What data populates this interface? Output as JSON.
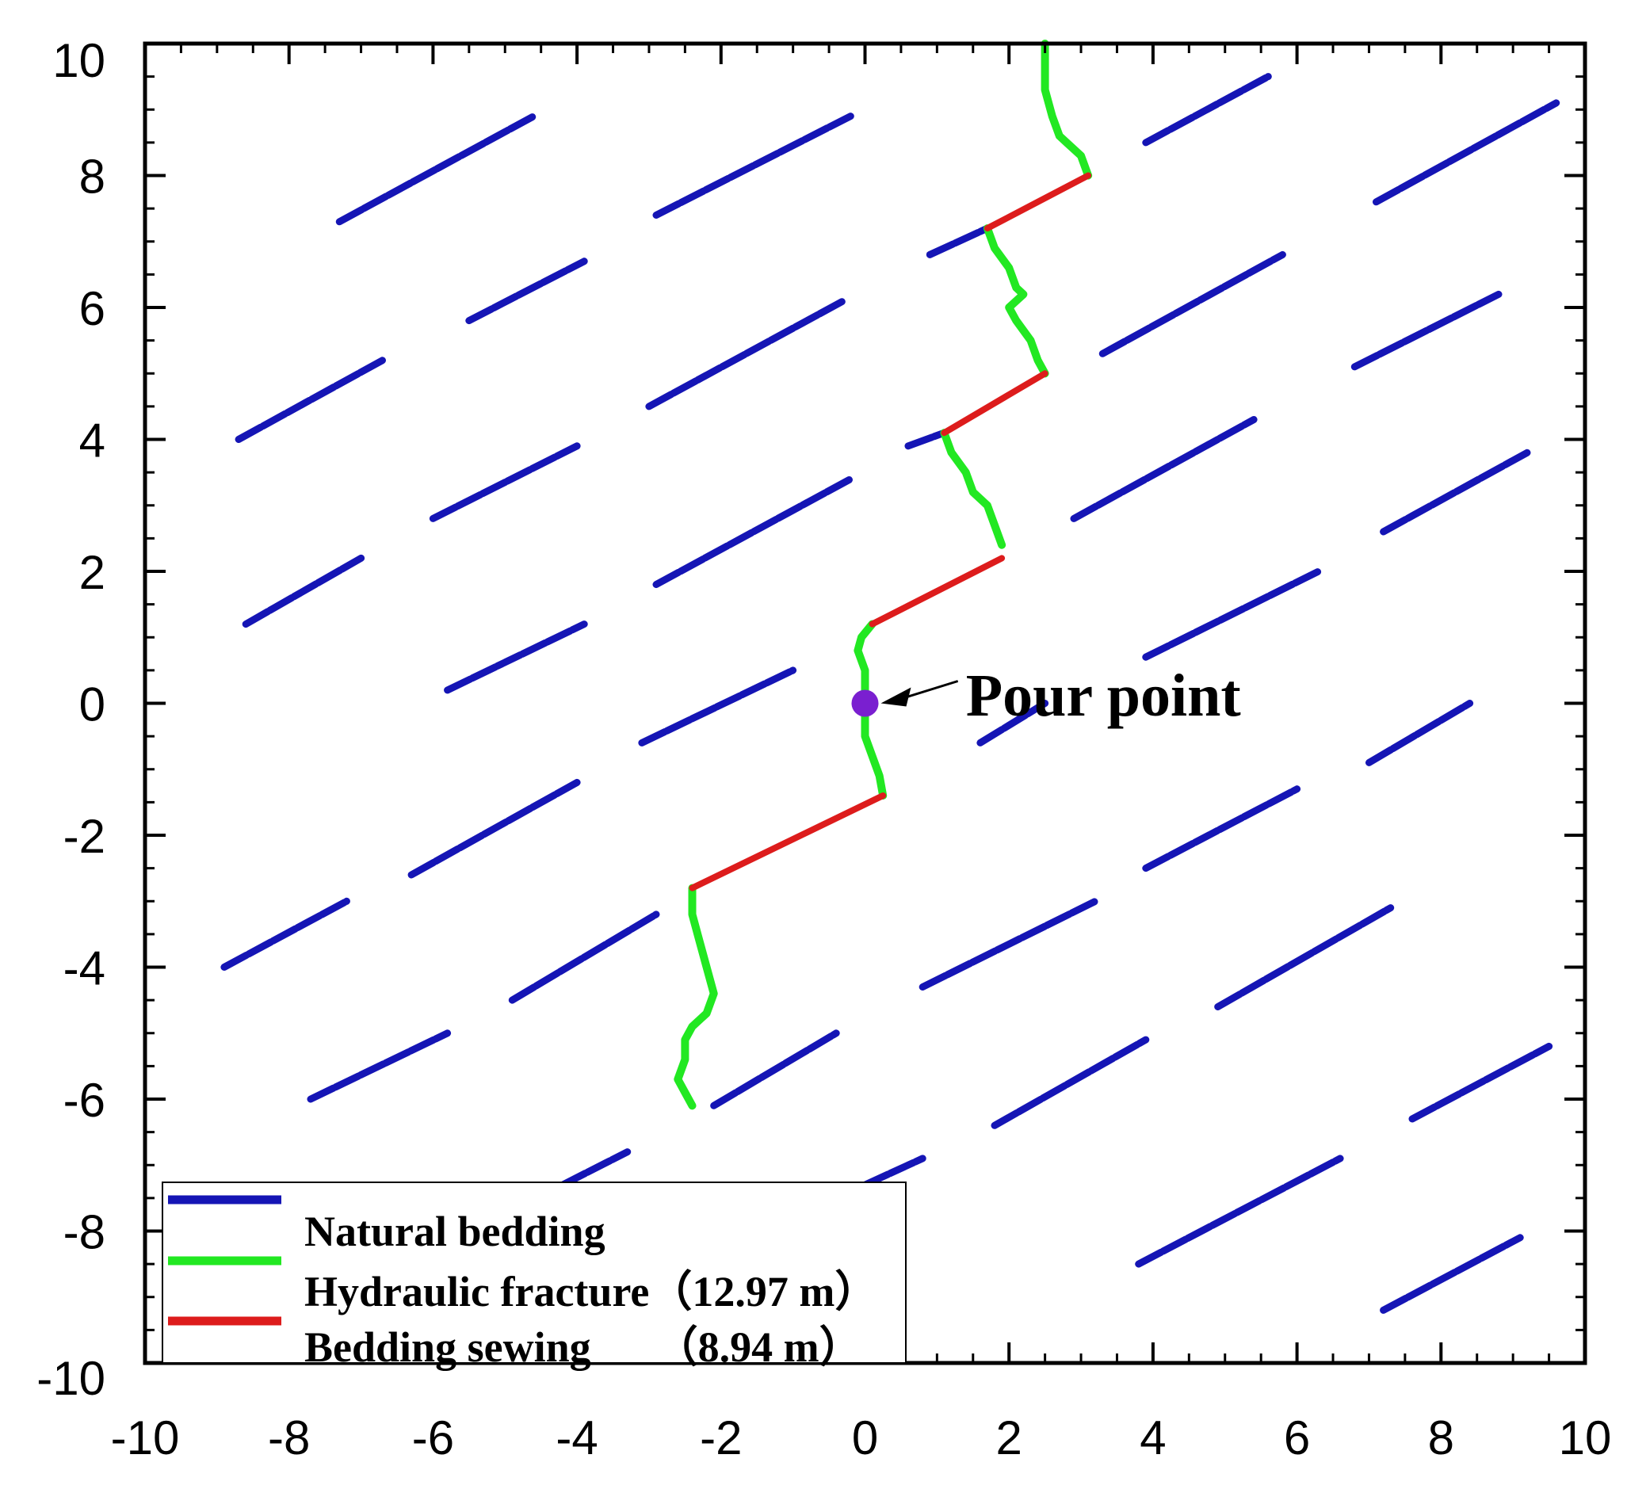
{
  "chart_data": {
    "type": "line",
    "title": "",
    "xlabel": "",
    "ylabel": "",
    "xlim": [
      -10,
      10
    ],
    "ylim": [
      -10,
      10
    ],
    "x_ticks": [
      "-10",
      "-8",
      "-6",
      "-4",
      "-2",
      "0",
      "2",
      "4",
      "6",
      "8",
      "10"
    ],
    "y_ticks": [
      "10",
      "8",
      "6",
      "4",
      "2",
      "0",
      "-2",
      "-4",
      "-6",
      "-8",
      "-10"
    ],
    "grid": false,
    "legend_position": "bottom-left",
    "colors": {
      "natural_bedding": "#1515b5",
      "hydraulic_fracture": "#22e822",
      "bedding_sewing": "#dd1c1c",
      "pour_point": "#7a1fd0",
      "axes": "#000000"
    },
    "series": [
      {
        "name": "Natural bedding",
        "segments": [
          [
            [
              -7.3,
              7.3
            ],
            [
              -4.6,
              8.9
            ]
          ],
          [
            [
              -2.9,
              7.4
            ],
            [
              -0.2,
              8.9
            ]
          ],
          [
            [
              0.9,
              6.8
            ],
            [
              1.7,
              7.2
            ]
          ],
          [
            [
              3.9,
              8.5
            ],
            [
              5.6,
              9.5
            ]
          ],
          [
            [
              7.1,
              7.6
            ],
            [
              9.6,
              9.1
            ]
          ],
          [
            [
              -5.5,
              5.8
            ],
            [
              -3.9,
              6.7
            ]
          ],
          [
            [
              -8.7,
              4.0
            ],
            [
              -6.7,
              5.2
            ]
          ],
          [
            [
              -3.0,
              4.5
            ],
            [
              -0.3,
              6.1
            ]
          ],
          [
            [
              0.6,
              3.9
            ],
            [
              1.1,
              4.1
            ]
          ],
          [
            [
              3.3,
              5.3
            ],
            [
              5.8,
              6.8
            ]
          ],
          [
            [
              6.8,
              5.1
            ],
            [
              8.8,
              6.2
            ]
          ],
          [
            [
              -6.0,
              2.8
            ],
            [
              -4.0,
              3.9
            ]
          ],
          [
            [
              -2.9,
              1.8
            ],
            [
              -0.2,
              3.4
            ]
          ],
          [
            [
              2.9,
              2.8
            ],
            [
              5.4,
              4.3
            ]
          ],
          [
            [
              7.2,
              2.6
            ],
            [
              9.2,
              3.8
            ]
          ],
          [
            [
              -8.6,
              1.2
            ],
            [
              -7.0,
              2.2
            ]
          ],
          [
            [
              -5.8,
              0.2
            ],
            [
              -3.9,
              1.2
            ]
          ],
          [
            [
              -3.1,
              -0.6
            ],
            [
              -1.0,
              0.5
            ]
          ],
          [
            [
              1.6,
              -0.6
            ],
            [
              2.5,
              0.0
            ]
          ],
          [
            [
              3.9,
              0.7
            ],
            [
              6.3,
              2.0
            ]
          ],
          [
            [
              7.0,
              -0.9
            ],
            [
              8.4,
              0.0
            ]
          ],
          [
            [
              -6.3,
              -2.6
            ],
            [
              -4.0,
              -1.2
            ]
          ],
          [
            [
              -8.9,
              -4.0
            ],
            [
              -7.2,
              -3.0
            ]
          ],
          [
            [
              -4.9,
              -4.5
            ],
            [
              -2.9,
              -3.2
            ]
          ],
          [
            [
              0.8,
              -4.3
            ],
            [
              3.2,
              -3.0
            ]
          ],
          [
            [
              3.9,
              -2.5
            ],
            [
              6.0,
              -1.3
            ]
          ],
          [
            [
              4.9,
              -4.6
            ],
            [
              7.3,
              -3.1
            ]
          ],
          [
            [
              -7.7,
              -6.0
            ],
            [
              -5.8,
              -5.0
            ]
          ],
          [
            [
              -2.1,
              -6.1
            ],
            [
              -0.4,
              -5.0
            ]
          ],
          [
            [
              1.8,
              -6.4
            ],
            [
              3.9,
              -5.1
            ]
          ],
          [
            [
              7.6,
              -6.3
            ],
            [
              9.5,
              -5.2
            ]
          ],
          [
            [
              -4.2,
              -7.3
            ],
            [
              -3.3,
              -6.8
            ]
          ],
          [
            [
              0.0,
              -7.3
            ],
            [
              0.8,
              -6.9
            ]
          ],
          [
            [
              3.8,
              -8.5
            ],
            [
              6.6,
              -6.9
            ]
          ],
          [
            [
              7.2,
              -9.2
            ],
            [
              9.1,
              -8.1
            ]
          ]
        ]
      },
      {
        "name": "Hydraulic fracture (12.97 m)",
        "segments": [
          [
            [
              2.5,
              10.0
            ],
            [
              2.5,
              9.3
            ],
            [
              2.6,
              8.9
            ],
            [
              2.7,
              8.6
            ],
            [
              2.8,
              8.5
            ],
            [
              3.0,
              8.3
            ],
            [
              3.1,
              8.0
            ]
          ],
          [
            [
              1.7,
              7.2
            ],
            [
              1.8,
              6.9
            ],
            [
              2.0,
              6.6
            ],
            [
              2.1,
              6.3
            ],
            [
              2.2,
              6.2
            ],
            [
              2.0,
              6.0
            ],
            [
              2.1,
              5.8
            ],
            [
              2.3,
              5.5
            ],
            [
              2.4,
              5.2
            ],
            [
              2.5,
              5.0
            ]
          ],
          [
            [
              1.1,
              4.1
            ],
            [
              1.2,
              3.8
            ],
            [
              1.4,
              3.5
            ],
            [
              1.5,
              3.2
            ],
            [
              1.7,
              3.0
            ],
            [
              1.8,
              2.7
            ],
            [
              1.9,
              2.4
            ]
          ],
          [
            [
              0.1,
              1.2
            ],
            [
              -0.05,
              1.0
            ],
            [
              -0.1,
              0.8
            ],
            [
              0.0,
              0.5
            ],
            [
              0.0,
              0.0
            ],
            [
              0.0,
              -0.5
            ],
            [
              0.1,
              -0.8
            ],
            [
              0.2,
              -1.1
            ],
            [
              0.25,
              -1.4
            ]
          ],
          [
            [
              -2.4,
              -2.8
            ],
            [
              -2.4,
              -3.2
            ],
            [
              -2.3,
              -3.6
            ],
            [
              -2.2,
              -4.0
            ],
            [
              -2.1,
              -4.4
            ],
            [
              -2.2,
              -4.7
            ],
            [
              -2.4,
              -4.9
            ],
            [
              -2.5,
              -5.1
            ],
            [
              -2.5,
              -5.4
            ],
            [
              -2.6,
              -5.7
            ],
            [
              -2.5,
              -5.9
            ],
            [
              -2.4,
              -6.1
            ]
          ]
        ]
      },
      {
        "name": "Bedding sewing (8.94 m)",
        "segments": [
          [
            [
              1.7,
              7.2
            ],
            [
              3.1,
              8.0
            ]
          ],
          [
            [
              1.1,
              4.1
            ],
            [
              2.5,
              5.0
            ]
          ],
          [
            [
              0.1,
              1.2
            ],
            [
              1.9,
              2.2
            ]
          ],
          [
            [
              -2.4,
              -2.8
            ],
            [
              0.25,
              -1.4
            ]
          ]
        ]
      }
    ],
    "annotations": [
      {
        "text": "Pour point",
        "point": [
          0.0,
          0.0
        ],
        "text_position": [
          1.4,
          0.1
        ]
      }
    ],
    "legend": [
      {
        "label": "Natural bedding"
      },
      {
        "label": "Hydraulic fracture（12.97 m）"
      },
      {
        "label": "Bedding sewing　　（8.94 m）"
      }
    ]
  }
}
